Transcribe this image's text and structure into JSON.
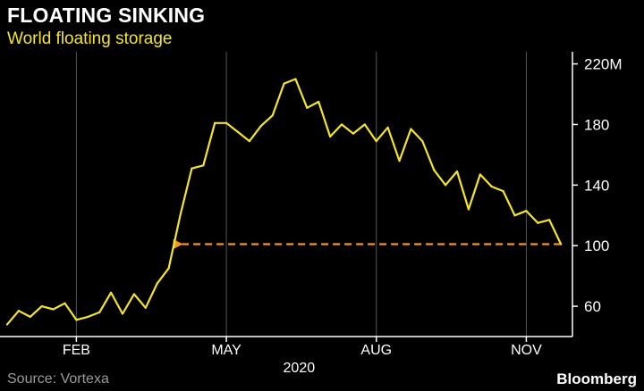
{
  "header": {
    "title": "FLOATING SINKING",
    "subtitle": "World floating storage"
  },
  "footer": {
    "source": "Source: Vortexa",
    "brand": "Bloomberg"
  },
  "colors": {
    "background": "#000000",
    "line": "#f5e52a",
    "reference_arrow": "#f0962a",
    "grid": "#555555",
    "text": "#ffffff",
    "source_text": "#9a9a9a"
  },
  "chart_data": {
    "type": "line",
    "title": "FLOATING SINKING",
    "subtitle": "World floating storage",
    "xlabel": "2020",
    "ylabel": "",
    "x_axis": {
      "unit": "week of 2020",
      "range": [
        0,
        49
      ],
      "ticks": [
        {
          "label": "FEB",
          "value": 6
        },
        {
          "label": "MAY",
          "value": 19
        },
        {
          "label": "AUG",
          "value": 32
        },
        {
          "label": "NOV",
          "value": 45
        }
      ],
      "year_label": "2020"
    },
    "y_axis": {
      "position": "right",
      "range": [
        40,
        228
      ],
      "ticks": [
        {
          "label": "60",
          "value": 60
        },
        {
          "label": "100",
          "value": 100
        },
        {
          "label": "140",
          "value": 140
        },
        {
          "label": "180",
          "value": 180
        },
        {
          "label": "220M",
          "value": 220
        }
      ]
    },
    "grid": "vertical",
    "series": [
      {
        "values": [
          {
            "x": 0,
            "y": 48
          },
          {
            "x": 1,
            "y": 57
          },
          {
            "x": 2,
            "y": 53
          },
          {
            "x": 3,
            "y": 60
          },
          {
            "x": 4,
            "y": 58
          },
          {
            "x": 5,
            "y": 62
          },
          {
            "x": 6,
            "y": 51
          },
          {
            "x": 7,
            "y": 53
          },
          {
            "x": 8,
            "y": 56
          },
          {
            "x": 9,
            "y": 69
          },
          {
            "x": 10,
            "y": 55
          },
          {
            "x": 11,
            "y": 68
          },
          {
            "x": 12,
            "y": 59
          },
          {
            "x": 13,
            "y": 75
          },
          {
            "x": 14,
            "y": 85
          },
          {
            "x": 15,
            "y": 120
          },
          {
            "x": 16,
            "y": 151
          },
          {
            "x": 17,
            "y": 153
          },
          {
            "x": 18,
            "y": 181
          },
          {
            "x": 19,
            "y": 181
          },
          {
            "x": 20,
            "y": 175
          },
          {
            "x": 21,
            "y": 169
          },
          {
            "x": 22,
            "y": 179
          },
          {
            "x": 23,
            "y": 186
          },
          {
            "x": 24,
            "y": 207
          },
          {
            "x": 25,
            "y": 210
          },
          {
            "x": 26,
            "y": 191
          },
          {
            "x": 27,
            "y": 195
          },
          {
            "x": 28,
            "y": 172
          },
          {
            "x": 29,
            "y": 180
          },
          {
            "x": 30,
            "y": 174
          },
          {
            "x": 31,
            "y": 180
          },
          {
            "x": 32,
            "y": 169
          },
          {
            "x": 33,
            "y": 178
          },
          {
            "x": 34,
            "y": 156
          },
          {
            "x": 35,
            "y": 177
          },
          {
            "x": 36,
            "y": 169
          },
          {
            "x": 37,
            "y": 150
          },
          {
            "x": 38,
            "y": 140
          },
          {
            "x": 39,
            "y": 149
          },
          {
            "x": 40,
            "y": 124
          },
          {
            "x": 41,
            "y": 147
          },
          {
            "x": 42,
            "y": 139
          },
          {
            "x": 43,
            "y": 136
          },
          {
            "x": 44,
            "y": 120
          },
          {
            "x": 45,
            "y": 123
          },
          {
            "x": 46,
            "y": 115
          },
          {
            "x": 47,
            "y": 117
          },
          {
            "x": 48,
            "y": 101
          }
        ]
      }
    ],
    "annotations": [
      {
        "type": "dashed-arrow",
        "from": {
          "x": 48,
          "y": 101
        },
        "to": {
          "x": 14.7,
          "y": 101
        }
      }
    ]
  }
}
